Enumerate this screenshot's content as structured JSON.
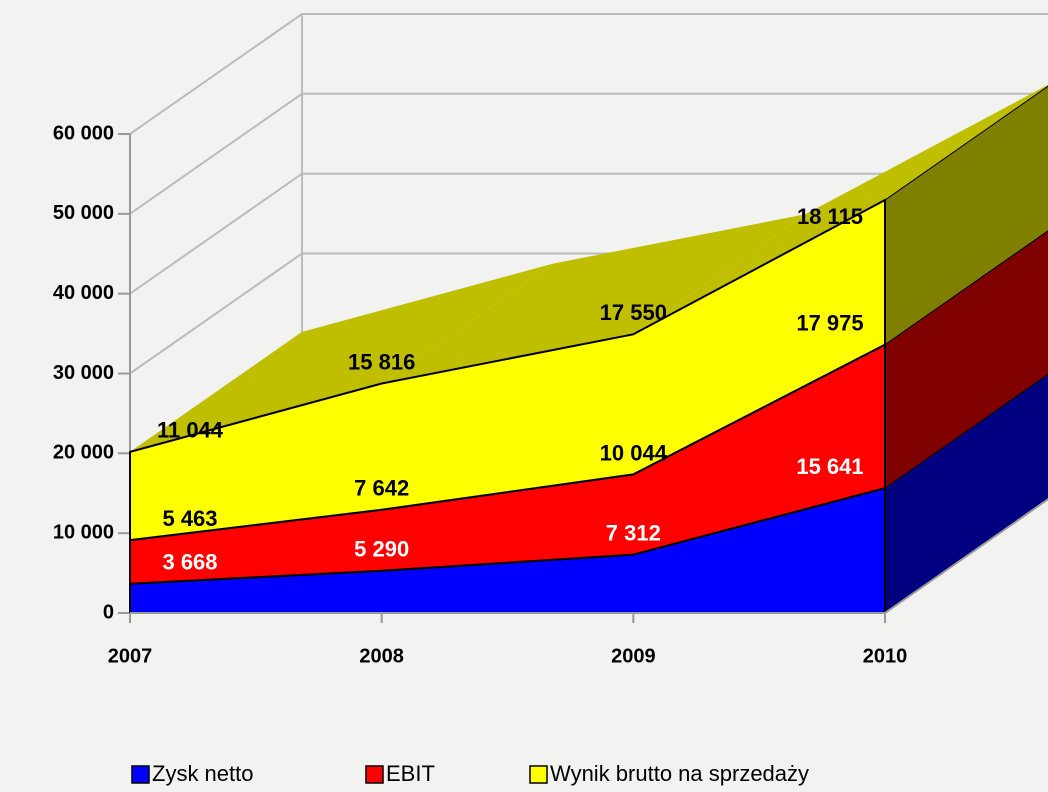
{
  "chart_data": {
    "type": "area3d_stacked",
    "categories": [
      "2007",
      "2008",
      "2009",
      "2010"
    ],
    "series": [
      {
        "name": "Zysk netto",
        "color": "#0000ff",
        "label_color": "#ffffff",
        "values": [
          3668,
          5290,
          7312,
          15641
        ],
        "value_labels": [
          "3 668",
          "5 290",
          "7 312",
          "15 641"
        ]
      },
      {
        "name": "EBIT",
        "color": "#ff0000",
        "label_color": "#000000",
        "values": [
          5463,
          7642,
          10044,
          17975
        ],
        "value_labels": [
          "5 463",
          "7 642",
          "10 044",
          "17 975"
        ]
      },
      {
        "name": "Wynik brutto na sprzedaży",
        "color": "#ffff00",
        "label_color": "#000000",
        "values": [
          11044,
          15816,
          17550,
          18115
        ],
        "value_labels": [
          "11 044",
          "15 816",
          "17 550",
          "18 115"
        ]
      }
    ],
    "ylim": [
      0,
      60000
    ],
    "yticks": [
      0,
      {
        "value": 10000,
        "label": "10 000"
      },
      {
        "value": 20000,
        "label": "20 000"
      },
      {
        "value": 30000,
        "label": "30 000"
      },
      {
        "value": 40000,
        "label": "40 000"
      },
      {
        "value": 50000,
        "label": "50 000"
      },
      {
        "value": 60000,
        "label": "60 000"
      }
    ],
    "grid": true,
    "legend": "bottom"
  }
}
